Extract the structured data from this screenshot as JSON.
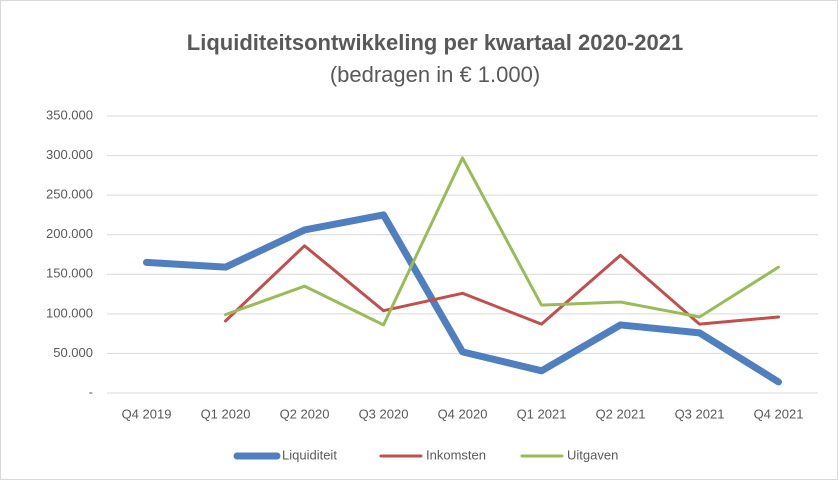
{
  "chart_data": {
    "type": "line",
    "title": "Liquiditeitsontwikkeling per kwartaal 2020-2021",
    "subtitle": "(bedragen in € 1.000)",
    "categories": [
      "Q4 2019",
      "Q1 2020",
      "Q2 2020",
      "Q3 2020",
      "Q4 2020",
      "Q1 2021",
      "Q2 2021",
      "Q3 2021",
      "Q4 2021"
    ],
    "series": [
      {
        "name": "Liquiditeit",
        "color": "#4f7fbf",
        "width": 7,
        "values": [
          165000,
          159000,
          206000,
          225000,
          52000,
          28000,
          86000,
          76000,
          14000
        ]
      },
      {
        "name": "Inkomsten",
        "color": "#c0504d",
        "width": 3,
        "values": [
          null,
          91000,
          186000,
          104000,
          126000,
          87000,
          174000,
          87000,
          96000
        ]
      },
      {
        "name": "Uitgaven",
        "color": "#9bbb59",
        "width": 3,
        "values": [
          null,
          99000,
          135000,
          86000,
          297000,
          111000,
          115000,
          96000,
          159000
        ]
      }
    ],
    "ylim": [
      0,
      350000
    ],
    "yticks": [
      {
        "value": 0,
        "label": "-"
      },
      {
        "value": 50000,
        "label": "50.000"
      },
      {
        "value": 100000,
        "label": "100.000"
      },
      {
        "value": 150000,
        "label": "150.000"
      },
      {
        "value": 200000,
        "label": "200.000"
      },
      {
        "value": 250000,
        "label": "250.000"
      },
      {
        "value": 300000,
        "label": "300.000"
      },
      {
        "value": 350000,
        "label": "350.000"
      }
    ],
    "grid": true,
    "legend": "bottom"
  }
}
